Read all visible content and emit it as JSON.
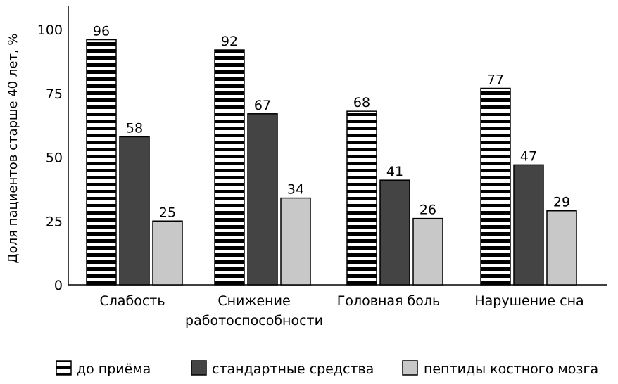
{
  "chart_data": {
    "type": "bar",
    "title": "",
    "xlabel": "",
    "ylabel": "Доля пациентов старше 40 лет, %",
    "ylim": [
      0,
      100
    ],
    "yticks": [
      0,
      25,
      50,
      75,
      100
    ],
    "grid": false,
    "legend_position": "bottom",
    "categories": [
      [
        "Слабость"
      ],
      [
        "Снижение",
        "работоспособности"
      ],
      [
        "Головная боль"
      ],
      [
        "Нарушение сна"
      ]
    ],
    "series": [
      {
        "name": "до приёма",
        "values": [
          96,
          92,
          68,
          77
        ],
        "pattern": "horizontal-stripes",
        "color": "#000000"
      },
      {
        "name": "стандартные средства",
        "values": [
          58,
          67,
          41,
          47
        ],
        "color": "#444444"
      },
      {
        "name": "пептиды костного мозга",
        "values": [
          25,
          34,
          26,
          29
        ],
        "color": "#c8c8c8"
      }
    ]
  }
}
